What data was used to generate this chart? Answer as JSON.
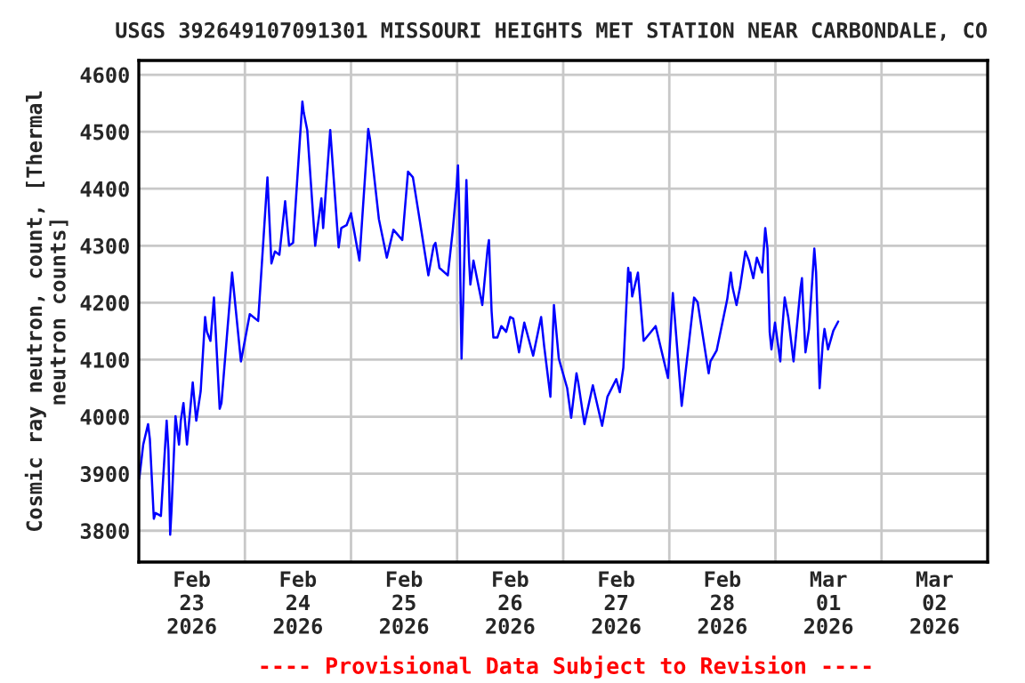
{
  "chart_data": {
    "type": "line",
    "title": "USGS 392649107091301 MISSOURI HEIGHTS MET STATION NEAR CARBONDALE, CO",
    "ylabel": "Cosmic ray neutron, count, [Thermal\nneutron counts]",
    "annotations": [
      "---- Provisional Data Subject to Revision ----"
    ],
    "xlim": [
      "2026-02-23T00:00",
      "2026-03-03T00:00"
    ],
    "xticks": [
      {
        "value": "2026-02-23T12:00",
        "label": "Feb\n23\n2026"
      },
      {
        "value": "2026-02-24T00:00",
        "label": null
      },
      {
        "value": "2026-02-24T12:00",
        "label": "Feb\n24\n2026"
      },
      {
        "value": "2026-02-25T00:00",
        "label": null
      },
      {
        "value": "2026-02-25T12:00",
        "label": "Feb\n25\n2026"
      },
      {
        "value": "2026-02-26T00:00",
        "label": null
      },
      {
        "value": "2026-02-26T12:00",
        "label": "Feb\n26\n2026"
      },
      {
        "value": "2026-02-27T00:00",
        "label": null
      },
      {
        "value": "2026-02-27T12:00",
        "label": "Feb\n27\n2026"
      },
      {
        "value": "2026-02-28T00:00",
        "label": null
      },
      {
        "value": "2026-02-28T12:00",
        "label": "Feb\n28\n2026"
      },
      {
        "value": "2026-03-01T00:00",
        "label": null
      },
      {
        "value": "2026-03-01T12:00",
        "label": "Mar\n01\n2026"
      },
      {
        "value": "2026-03-02T00:00",
        "label": null
      },
      {
        "value": "2026-03-02T12:00",
        "label": "Mar\n02\n2026"
      }
    ],
    "ylim": [
      3745,
      4625
    ],
    "yticks": [
      3800,
      3900,
      4000,
      4100,
      4200,
      4300,
      4400,
      4500,
      4600
    ],
    "grid": true,
    "legend": false,
    "marker": "none",
    "line_style": "solid",
    "series": [
      {
        "color": "#0000ff",
        "x": [
          "2026-02-23T00:06",
          "2026-02-23T01:00",
          "2026-02-23T02:06",
          "2026-02-23T02:30",
          "2026-02-23T03:24",
          "2026-02-23T03:48",
          "2026-02-23T05:00",
          "2026-02-23T06:18",
          "2026-02-23T06:42",
          "2026-02-23T07:06",
          "2026-02-23T07:24",
          "2026-02-23T08:18",
          "2026-02-23T09:06",
          "2026-02-23T09:30",
          "2026-02-23T10:06",
          "2026-02-23T10:54",
          "2026-02-23T12:12",
          "2026-02-23T13:00",
          "2026-02-23T14:00",
          "2026-02-23T15:00",
          "2026-02-23T15:24",
          "2026-02-23T16:12",
          "2026-02-23T17:00",
          "2026-02-23T18:18",
          "2026-02-23T18:42",
          "2026-02-23T21:06",
          "2026-02-23T23:06",
          "2026-02-24T01:06",
          "2026-02-24T03:00",
          "2026-02-24T05:06",
          "2026-02-24T06:00",
          "2026-02-24T06:48",
          "2026-02-24T07:48",
          "2026-02-24T09:06",
          "2026-02-24T10:00",
          "2026-02-24T10:54",
          "2026-02-24T13:00",
          "2026-02-24T13:18",
          "2026-02-24T14:06",
          "2026-02-24T15:54",
          "2026-02-24T17:18",
          "2026-02-24T17:42",
          "2026-02-24T19:18",
          "2026-02-24T21:12",
          "2026-02-24T21:48",
          "2026-02-24T23:00",
          "2026-02-25T00:00",
          "2026-02-25T01:54",
          "2026-02-25T03:54",
          "2026-02-25T04:18",
          "2026-02-25T06:18",
          "2026-02-25T08:06",
          "2026-02-25T09:36",
          "2026-02-25T11:36",
          "2026-02-25T12:54",
          "2026-02-25T14:00",
          "2026-02-25T15:36",
          "2026-02-25T17:30",
          "2026-02-25T18:42",
          "2026-02-25T19:06",
          "2026-02-25T20:00",
          "2026-02-25T21:54",
          "2026-02-25T23:00",
          "2026-02-25T23:54",
          "2026-02-26T00:12",
          "2026-02-26T00:30",
          "2026-02-26T01:00",
          "2026-02-26T01:18",
          "2026-02-26T02:06",
          "2026-02-26T02:42",
          "2026-02-26T03:00",
          "2026-02-26T03:42",
          "2026-02-26T05:42",
          "2026-02-26T06:54",
          "2026-02-26T07:12",
          "2026-02-26T07:48",
          "2026-02-26T08:12",
          "2026-02-26T09:06",
          "2026-02-26T10:00",
          "2026-02-26T11:06",
          "2026-02-26T12:00",
          "2026-02-26T12:42",
          "2026-02-26T14:00",
          "2026-02-26T15:12",
          "2026-02-26T17:12",
          "2026-02-26T19:00",
          "2026-02-26T19:42",
          "2026-02-26T21:06",
          "2026-02-26T21:54",
          "2026-02-26T23:00",
          "2026-02-27T00:54",
          "2026-02-27T01:48",
          "2026-02-27T03:00",
          "2026-02-27T03:24",
          "2026-02-27T04:48",
          "2026-02-27T06:42",
          "2026-02-27T08:48",
          "2026-02-27T10:00",
          "2026-02-27T12:00",
          "2026-02-27T12:48",
          "2026-02-27T13:36",
          "2026-02-27T14:42",
          "2026-02-27T15:00",
          "2026-02-27T15:12",
          "2026-02-27T15:36",
          "2026-02-27T16:54",
          "2026-02-27T18:12",
          "2026-02-27T20:54",
          "2026-02-27T23:42",
          "2026-02-28T00:48",
          "2026-02-28T02:48",
          "2026-02-28T05:36",
          "2026-02-28T06:24",
          "2026-02-28T08:54",
          "2026-02-28T09:18",
          "2026-02-28T10:42",
          "2026-02-28T13:06",
          "2026-02-28T13:54",
          "2026-02-28T14:18",
          "2026-02-28T15:12",
          "2026-02-28T16:00",
          "2026-02-28T17:12",
          "2026-02-28T18:00",
          "2026-02-28T19:00",
          "2026-02-28T19:48",
          "2026-02-28T21:00",
          "2026-02-28T21:42",
          "2026-02-28T22:12",
          "2026-02-28T22:42",
          "2026-02-28T23:06",
          "2026-02-28T23:54",
          "2026-03-01T01:06",
          "2026-03-01T01:24",
          "2026-03-01T02:06",
          "2026-03-01T02:54",
          "2026-03-01T04:06",
          "2026-03-01T05:42",
          "2026-03-01T06:00",
          "2026-03-01T06:12",
          "2026-03-01T06:48",
          "2026-03-01T07:36",
          "2026-03-01T08:48",
          "2026-03-01T09:12",
          "2026-03-01T10:00",
          "2026-03-01T10:42",
          "2026-03-01T11:06",
          "2026-03-01T11:54",
          "2026-03-01T13:06",
          "2026-03-01T14:12"
        ],
        "values": [
          3891,
          3951,
          3987,
          3961,
          3821,
          3831,
          3826,
          3993,
          3941,
          3793,
          3836,
          4001,
          3951,
          3993,
          4024,
          3951,
          4060,
          3993,
          4045,
          4175,
          4149,
          4133,
          4209,
          4014,
          4024,
          4253,
          4097,
          4180,
          4168,
          4420,
          4269,
          4290,
          4284,
          4378,
          4300,
          4305,
          4553,
          4534,
          4503,
          4300,
          4383,
          4331,
          4503,
          4297,
          4331,
          4336,
          4357,
          4274,
          4505,
          4487,
          4347,
          4279,
          4328,
          4310,
          4430,
          4420,
          4342,
          4248,
          4300,
          4305,
          4261,
          4248,
          4326,
          4404,
          4441,
          4357,
          4102,
          4180,
          4415,
          4274,
          4232,
          4274,
          4196,
          4295,
          4310,
          4185,
          4139,
          4139,
          4159,
          4149,
          4175,
          4172,
          4113,
          4165,
          4107,
          4175,
          4123,
          4035,
          4196,
          4102,
          4050,
          3998,
          4076,
          4060,
          3987,
          4055,
          3984,
          4035,
          4066,
          4043,
          4086,
          4261,
          4237,
          4253,
          4211,
          4253,
          4133,
          4159,
          4068,
          4217,
          4019,
          4209,
          4201,
          4076,
          4097,
          4116,
          4206,
          4253,
          4227,
          4196,
          4227,
          4290,
          4274,
          4243,
          4279,
          4253,
          4331,
          4295,
          4149,
          4118,
          4165,
          4097,
          4139,
          4209,
          4175,
          4097,
          4227,
          4243,
          4206,
          4113,
          4154,
          4295,
          4253,
          4050,
          4128,
          4154,
          4118,
          4151,
          4167
        ]
      }
    ]
  }
}
